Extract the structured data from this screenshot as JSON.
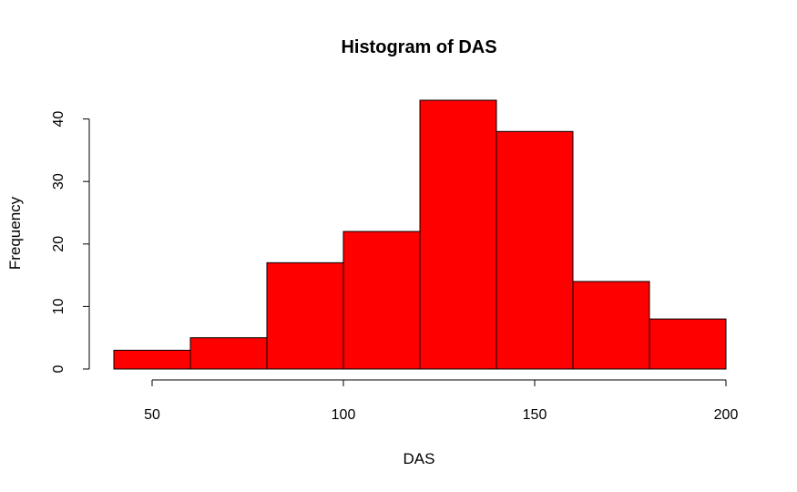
{
  "chart_data": {
    "type": "bar",
    "subtype": "histogram",
    "title": "Histogram of DAS",
    "xlabel": "DAS",
    "ylabel": "Frequency",
    "bins": [
      {
        "start": 40,
        "end": 60,
        "count": 3
      },
      {
        "start": 60,
        "end": 80,
        "count": 5
      },
      {
        "start": 80,
        "end": 100,
        "count": 17
      },
      {
        "start": 100,
        "end": 120,
        "count": 22
      },
      {
        "start": 120,
        "end": 140,
        "count": 43
      },
      {
        "start": 140,
        "end": 160,
        "count": 38
      },
      {
        "start": 160,
        "end": 180,
        "count": 14
      },
      {
        "start": 180,
        "end": 200,
        "count": 8
      }
    ],
    "xlim": [
      40,
      200
    ],
    "ylim": [
      0,
      43
    ],
    "x_ticks": [
      50,
      100,
      150,
      200
    ],
    "y_ticks": [
      0,
      10,
      20,
      30,
      40
    ],
    "bar_color": "#ff0000",
    "edge_color": "#000000",
    "grid": false,
    "legend": false
  }
}
